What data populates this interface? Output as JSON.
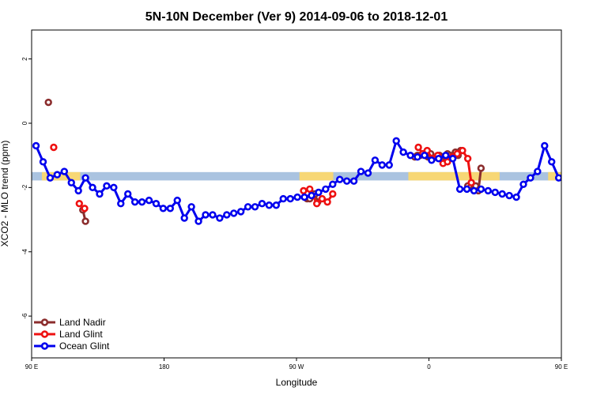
{
  "chart_data": {
    "type": "line",
    "title": "5N-10N December (Ver 9)   2014-09-06 to 2018-12-01",
    "xlabel": "Longitude",
    "ylabel": "XCO2 - MLO trend (ppm)",
    "xlim": [
      90,
      450
    ],
    "ylim": [
      -7.3,
      2.9
    ],
    "x_ticks": [
      {
        "value": 90,
        "label": "90 E"
      },
      {
        "value": 180,
        "label": "180"
      },
      {
        "value": 270,
        "label": "90 W"
      },
      {
        "value": 360,
        "label": "0"
      },
      {
        "value": 450,
        "label": "90 E"
      },
      {
        "value": 540,
        "label": "180"
      }
    ],
    "y_ticks": [
      {
        "value": 2,
        "label": "2"
      },
      {
        "value": 0,
        "label": "0"
      },
      {
        "value": -2,
        "label": "-2"
      },
      {
        "value": -4,
        "label": "-4"
      },
      {
        "value": -6,
        "label": "-6"
      }
    ],
    "legend_position": "bottom-left",
    "land_band": {
      "y_range": [
        -1.78,
        -1.52
      ],
      "ocean_color": "#aac3e0",
      "land_color": "#f7d775",
      "land_segments": [
        [
          97,
          123
        ],
        [
          272,
          295
        ],
        [
          346,
          408
        ],
        [
          441,
          457
        ],
        [
          496,
          519
        ],
        [
          613,
          676
        ]
      ]
    },
    "series": [
      {
        "name": "Land Nadir",
        "color": "#8b2d2d",
        "segments": [
          {
            "x": [
              101.4
            ],
            "y": [
              0.65
            ]
          },
          {
            "x": [
              124.8,
              126.6
            ],
            "y": [
              -2.7,
              -3.05
            ]
          },
          {
            "x": [
              277.2,
              279,
              280.8,
              282.6,
              284.4
            ],
            "y": [
              -2.35,
              -2.35,
              -2.2,
              -2.2,
              -2.45
            ]
          },
          {
            "x": [
              350.4,
              352.2,
              354,
              355.8,
              357.6,
              359.4,
              361.2
            ],
            "y": [
              -1.05,
              -1.0,
              -1.0,
              -0.95,
              -1.0,
              -1.05,
              -0.95
            ]
          },
          {
            "x": [
              367.2,
              369,
              370.8,
              372.6,
              374.4,
              376.2,
              378,
              379.8,
              381.6
            ],
            "y": [
              -1.0,
              -1.1,
              -1.05,
              -0.95,
              -1.0,
              -1.05,
              -0.9,
              -1.0,
              -0.85
            ]
          },
          {
            "x": [
              386.4,
              388.2,
              390,
              391.8,
              393.6,
              395.4
            ],
            "y": [
              -1.95,
              -2.0,
              -2.05,
              -1.95,
              -2.1,
              -1.4
            ]
          },
          {
            "x": [
              461.4
            ],
            "y": [
              0.65
            ]
          },
          {
            "x": [
              484.8,
              486.6
            ],
            "y": [
              -2.7,
              -3.05
            ]
          },
          {
            "x": [
              637.2,
              639,
              640.8,
              642.6,
              644.4
            ],
            "y": [
              -2.35,
              -2.35,
              -2.2,
              -2.2,
              -2.45
            ]
          }
        ]
      },
      {
        "name": "Land Glint",
        "color": "#ee1111",
        "segments": [
          {
            "x": [
              105
            ],
            "y": [
              -0.75
            ]
          },
          {
            "x": [
              122.4
            ],
            "y": [
              -2.5
            ]
          },
          {
            "x": [
              126
            ],
            "y": [
              -2.65
            ]
          },
          {
            "x": [
              274.8,
              279,
              283.8,
              287.4,
              291,
              294.6
            ],
            "y": [
              -2.1,
              -2.05,
              -2.5,
              -2.35,
              -2.45,
              -2.2
            ]
          },
          {
            "x": [
              352.8,
              355.8,
              358.8,
              362.4,
              366,
              369.6,
              372.6,
              375.6,
              379.2,
              382.8,
              386.4,
              388.8
            ],
            "y": [
              -0.75,
              -0.95,
              -0.85,
              -1.1,
              -1.0,
              -1.25,
              -1.2,
              -1.05,
              -0.95,
              -0.85,
              -1.1,
              -1.85
            ]
          }
        ]
      },
      {
        "name": "Ocean Glint",
        "color": "#0000ee",
        "segments": [
          {
            "x": [
              93,
              97.8,
              102.6,
              107.4,
              112.2,
              117,
              121.8,
              126.6,
              131.4,
              136.2,
              141,
              145.8,
              150.6,
              155.4,
              160.2,
              165,
              169.8,
              174.6,
              179.4,
              184.2,
              189,
              193.8,
              198.6,
              203.4,
              208.2,
              213,
              217.8,
              222.6,
              227.4,
              232.2,
              237,
              241.8,
              246.6,
              251.4,
              256.2,
              261,
              265.8,
              270.6,
              275.4,
              280.2,
              285,
              289.8,
              294.6,
              299.4,
              304.2,
              309,
              313.8,
              318.6,
              323.4,
              328.2,
              333,
              337.8,
              342.6,
              347.4,
              352.2,
              357,
              361.8,
              366.6,
              371.4,
              376.2,
              381,
              385.8,
              390.6,
              395.4,
              400.2,
              405,
              409.8,
              414.6,
              419.4,
              424.2,
              429,
              433.8,
              438.6,
              443.4,
              448.2,
              453,
              457.8,
              462.6,
              467.4,
              472.2,
              477,
              481.8,
              486.6,
              491.4,
              496.2,
              501,
              505.8,
              510.6,
              515.4,
              520.2,
              525,
              529.8,
              534.6,
              539.4
            ],
            "y": [
              -0.7,
              -1.2,
              -1.7,
              -1.6,
              -1.5,
              -1.85,
              -2.1,
              -1.7,
              -2.0,
              -2.2,
              -1.95,
              -2.0,
              -2.5,
              -2.2,
              -2.45,
              -2.45,
              -2.4,
              -2.5,
              -2.65,
              -2.65,
              -2.4,
              -2.95,
              -2.6,
              -3.05,
              -2.85,
              -2.85,
              -2.95,
              -2.85,
              -2.8,
              -2.75,
              -2.6,
              -2.6,
              -2.5,
              -2.55,
              -2.55,
              -2.35,
              -2.35,
              -2.3,
              -2.3,
              -2.25,
              -2.15,
              -2.05,
              -1.9,
              -1.75,
              -1.8,
              -1.8,
              -1.5,
              -1.55,
              -1.15,
              -1.3,
              -1.3,
              -0.55,
              -0.9,
              -1.0,
              -1.05,
              -1.0,
              -1.15,
              -1.1,
              -1.0,
              -1.1,
              -2.05,
              -2.05,
              -2.1,
              -2.05,
              -2.1,
              -2.15,
              -2.2,
              -2.25,
              -2.3,
              -1.9,
              -1.7,
              -1.5,
              -0.7,
              -1.2,
              -1.7,
              -1.6,
              -1.5,
              -1.85,
              -2.1,
              -1.7,
              -2.0,
              -2.2,
              -1.95,
              -2.0,
              -2.5,
              -2.2,
              -2.45,
              -2.45,
              -2.4,
              -2.5,
              -2.65,
              -2.65,
              -2.4,
              -2.95
            ]
          }
        ]
      }
    ]
  }
}
